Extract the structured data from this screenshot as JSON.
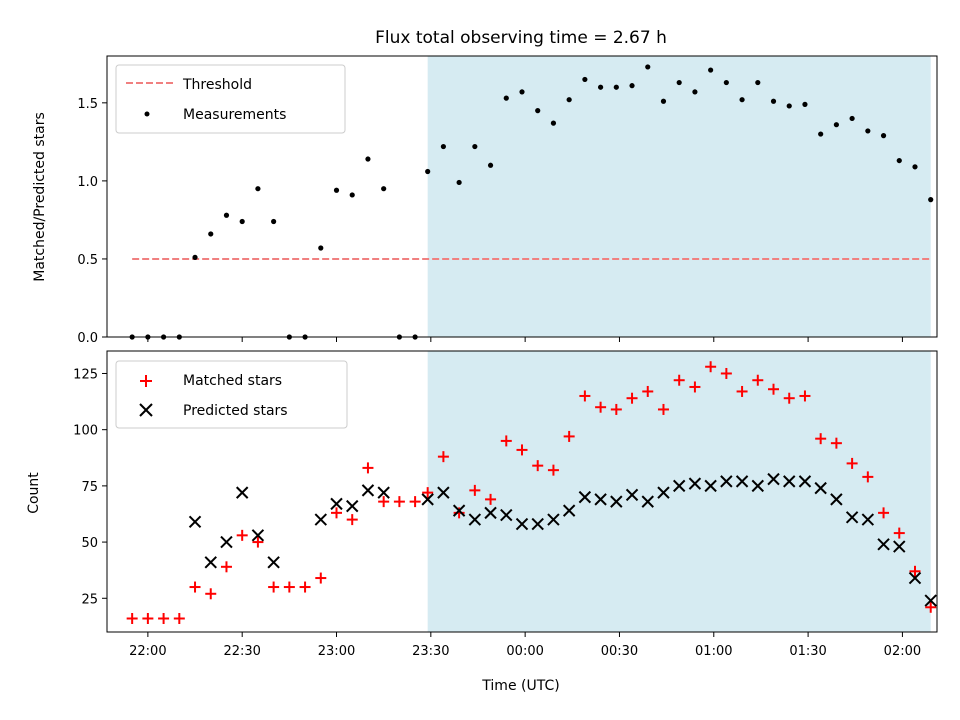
{
  "colors": {
    "threshold": "#f08080",
    "measurement": "#000000",
    "matched": "#ff0000",
    "predicted": "#000000",
    "shade": "#add8e6"
  },
  "chart_data": [
    {
      "type": "scatter",
      "title": "Flux total observing time = 2.67 h",
      "xlabel": "",
      "ylabel": "Matched/Predicted stars",
      "ylim": [
        0,
        1.8
      ],
      "yticks": [
        0.0,
        0.5,
        1.0,
        1.5
      ],
      "ytick_labels": [
        "0.0",
        "0.5",
        "1.0",
        "1.5"
      ],
      "shaded_span": [
        "23:29",
        "02:09"
      ],
      "legend": {
        "placement": "upper-left",
        "entries": [
          "Threshold",
          "Measurements"
        ]
      },
      "series": [
        {
          "name": "Threshold",
          "kind": "dashed-line",
          "x": [
            "21:55",
            "02:09"
          ],
          "y": [
            0.5,
            0.5
          ]
        },
        {
          "name": "Measurements",
          "kind": "points",
          "x": [
            "21:55",
            "22:00",
            "22:05",
            "22:10",
            "22:15",
            "22:20",
            "22:25",
            "22:30",
            "22:35",
            "22:40",
            "22:45",
            "22:50",
            "22:55",
            "23:00",
            "23:05",
            "23:10",
            "23:15",
            "23:20",
            "23:25",
            "23:29",
            "23:34",
            "23:39",
            "23:44",
            "23:49",
            "23:54",
            "23:59",
            "00:04",
            "00:09",
            "00:14",
            "00:19",
            "00:24",
            "00:29",
            "00:34",
            "00:39",
            "00:44",
            "00:49",
            "00:54",
            "00:59",
            "01:04",
            "01:09",
            "01:14",
            "01:19",
            "01:24",
            "01:29",
            "01:34",
            "01:39",
            "01:44",
            "01:49",
            "01:54",
            "01:59",
            "02:04",
            "02:09"
          ],
          "y": [
            0.0,
            0.0,
            0.0,
            0.0,
            0.51,
            0.66,
            0.78,
            0.74,
            0.95,
            0.74,
            0.0,
            0.0,
            0.57,
            0.94,
            0.91,
            1.14,
            0.95,
            0.0,
            0.0,
            1.06,
            1.22,
            0.99,
            1.22,
            1.1,
            1.53,
            1.57,
            1.45,
            1.37,
            1.52,
            1.65,
            1.6,
            1.6,
            1.61,
            1.73,
            1.51,
            1.63,
            1.57,
            1.71,
            1.63,
            1.52,
            1.63,
            1.51,
            1.48,
            1.49,
            1.3,
            1.36,
            1.4,
            1.32,
            1.29,
            1.13,
            1.09,
            0.88
          ]
        }
      ]
    },
    {
      "type": "scatter",
      "title": "",
      "xlabel": "Time (UTC)",
      "ylabel": "Count",
      "ylim": [
        10,
        135
      ],
      "yticks": [
        25,
        50,
        75,
        100,
        125
      ],
      "ytick_labels": [
        "25",
        "50",
        "75",
        "100",
        "125"
      ],
      "xlim": [
        "21:47",
        "02:11"
      ],
      "xticks": [
        "22:00",
        "22:30",
        "23:00",
        "23:30",
        "00:00",
        "00:30",
        "01:00",
        "01:30",
        "02:00"
      ],
      "shaded_span": [
        "23:29",
        "02:09"
      ],
      "legend": {
        "placement": "upper-left",
        "entries": [
          "Matched stars",
          "Predicted stars"
        ]
      },
      "series": [
        {
          "name": "Matched stars",
          "kind": "plus",
          "x": [
            "21:55",
            "22:00",
            "22:05",
            "22:10",
            "22:15",
            "22:20",
            "22:25",
            "22:30",
            "22:35",
            "22:40",
            "22:45",
            "22:50",
            "22:55",
            "23:00",
            "23:05",
            "23:10",
            "23:15",
            "23:20",
            "23:25",
            "23:29",
            "23:34",
            "23:39",
            "23:44",
            "23:49",
            "23:54",
            "23:59",
            "00:04",
            "00:09",
            "00:14",
            "00:19",
            "00:24",
            "00:29",
            "00:34",
            "00:39",
            "00:44",
            "00:49",
            "00:54",
            "00:59",
            "01:04",
            "01:09",
            "01:14",
            "01:19",
            "01:24",
            "01:29",
            "01:34",
            "01:39",
            "01:44",
            "01:49",
            "01:54",
            "01:59",
            "02:04",
            "02:09"
          ],
          "y": [
            16,
            16,
            16,
            16,
            30,
            27,
            39,
            53,
            50,
            30,
            30,
            30,
            34,
            63,
            60,
            83,
            68,
            68,
            68,
            72,
            88,
            63,
            73,
            69,
            95,
            91,
            84,
            82,
            97,
            115,
            110,
            109,
            114,
            117,
            109,
            122,
            119,
            128,
            125,
            117,
            122,
            118,
            114,
            115,
            96,
            94,
            85,
            79,
            63,
            54,
            37,
            21
          ]
        },
        {
          "name": "Predicted stars",
          "kind": "x",
          "x": [
            "22:15",
            "22:20",
            "22:25",
            "22:30",
            "22:35",
            "22:40",
            "22:55",
            "23:00",
            "23:05",
            "23:10",
            "23:15",
            "23:29",
            "23:34",
            "23:39",
            "23:44",
            "23:49",
            "23:54",
            "23:59",
            "00:04",
            "00:09",
            "00:14",
            "00:19",
            "00:24",
            "00:29",
            "00:34",
            "00:39",
            "00:44",
            "00:49",
            "00:54",
            "00:59",
            "01:04",
            "01:09",
            "01:14",
            "01:19",
            "01:24",
            "01:29",
            "01:34",
            "01:39",
            "01:44",
            "01:49",
            "01:54",
            "01:59",
            "02:04",
            "02:09"
          ],
          "y": [
            59,
            41,
            50,
            72,
            53,
            41,
            60,
            67,
            66,
            73,
            72,
            69,
            72,
            64,
            60,
            63,
            62,
            58,
            58,
            60,
            64,
            70,
            69,
            68,
            71,
            68,
            72,
            75,
            76,
            75,
            77,
            77,
            75,
            78,
            77,
            77,
            74,
            69,
            61,
            60,
            49,
            48,
            34,
            24
          ]
        }
      ]
    }
  ]
}
